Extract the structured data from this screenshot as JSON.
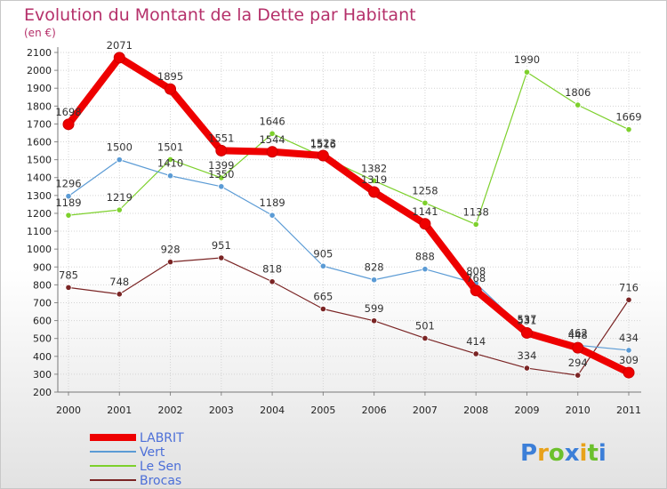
{
  "chart_data": {
    "type": "line",
    "title": "Evolution du Montant de la Dette par Habitant",
    "subtitle": "(en €)",
    "xlabel": "",
    "ylabel": "",
    "x": [
      "2000",
      "2001",
      "2002",
      "2003",
      "2004",
      "2005",
      "2006",
      "2007",
      "2008",
      "2009",
      "2010",
      "2011"
    ],
    "ylim": [
      200,
      2100
    ],
    "ytick_step": 100,
    "grid": true,
    "legend_position": "bottom-left",
    "series": [
      {
        "name": "LABRIT",
        "color": "#ee0000",
        "values": [
          1698,
          2071,
          1895,
          1551,
          1544,
          1523,
          1319,
          1141,
          768,
          531,
          448,
          309
        ]
      },
      {
        "name": "Vert",
        "color": "#5b9bd5",
        "values": [
          1296,
          1500,
          1410,
          1350,
          1189,
          905,
          828,
          888,
          808,
          537,
          462,
          434
        ]
      },
      {
        "name": "Le Sen",
        "color": "#7dd02c",
        "values": [
          1189,
          1219,
          1501,
          1399,
          1646,
          1516,
          1382,
          1258,
          1138,
          1990,
          1806,
          1669
        ]
      },
      {
        "name": "Brocas",
        "color": "#7a2424",
        "values": [
          785,
          748,
          928,
          951,
          818,
          665,
          599,
          501,
          414,
          334,
          294,
          716
        ]
      }
    ]
  },
  "logo": {
    "text": "Proxiti",
    "icon": "proxiti-logo"
  }
}
